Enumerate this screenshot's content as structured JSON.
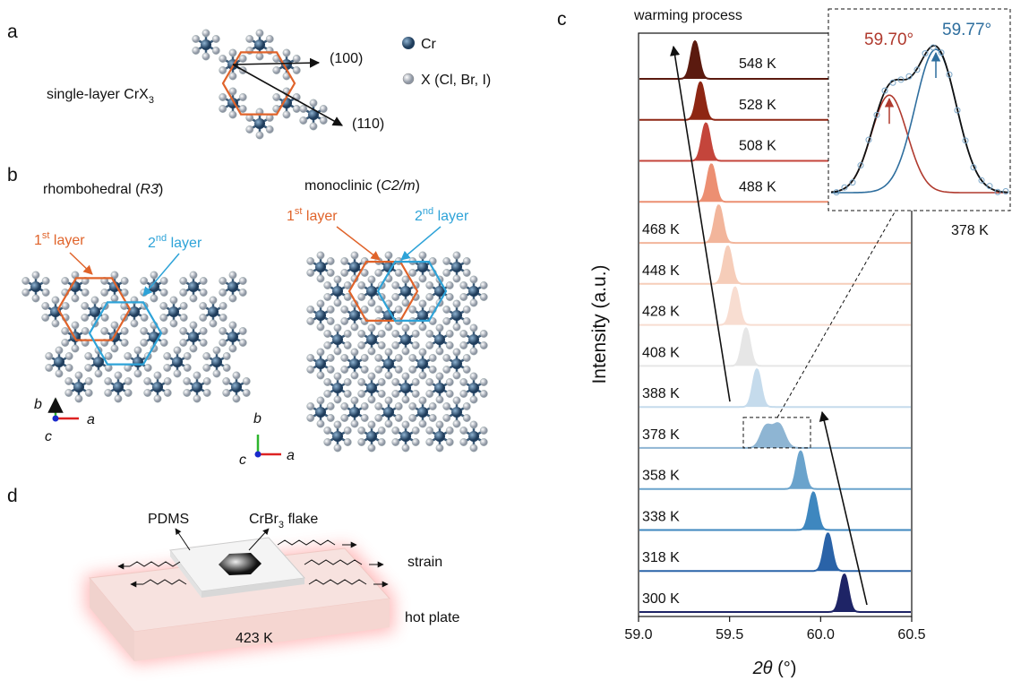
{
  "panel_labels": [
    "a",
    "b",
    "c",
    "d"
  ],
  "panel_a": {
    "label": "single-layer CrX",
    "label_sub": "3",
    "direction_1": "(100)",
    "direction_2": "(110)",
    "legend": [
      "Cr",
      "X (Cl, Br, I)"
    ]
  },
  "panel_b": {
    "rhombohedral": {
      "prefix": "rhombohedral (",
      "symbol": "R3̄",
      "suffix": ")"
    },
    "monoclinic": {
      "prefix": "monoclinic (",
      "symbol": "C2/m",
      "suffix": ")"
    },
    "first_layer": {
      "number": "1",
      "sup": "st",
      "text": " layer"
    },
    "second_layer": {
      "number": "2",
      "sup": "nd",
      "text": " layer"
    },
    "axes": [
      "b",
      "c",
      "a"
    ]
  },
  "panel_d": {
    "pdms": "PDMS",
    "flake": "CrBr",
    "flake_sub": "3",
    "flake_text": " flake",
    "strain": "strain",
    "hot_plate": "hot plate",
    "temperature": "423 K"
  },
  "chart_data": {
    "type": "ridgeline",
    "title": "warming process",
    "x_label_italic": "2θ",
    "x_label_unit": " (°)",
    "y_label": "Intensity (a.u.)",
    "xlim": [
      59,
      60.5
    ],
    "xticks": [
      {
        "value": 59,
        "label": "59.0"
      },
      59.5,
      {
        "value": 60,
        "label": "60.0"
      },
      60.5
    ],
    "series": [
      {
        "name": "548 K",
        "color": "#5b1a0f",
        "peak": 59.31
      },
      {
        "name": "528 K",
        "color": "#8e2613",
        "peak": 59.34
      },
      {
        "name": "508 K",
        "color": "#c4453b",
        "peak": 59.37
      },
      {
        "name": "488 K",
        "color": "#ec8f72",
        "peak": 59.4
      },
      {
        "name": "468 K",
        "color": "#f2b59b",
        "peak": 59.44
      },
      {
        "name": "448 K",
        "color": "#f6cdb9",
        "peak": 59.49
      },
      {
        "name": "428 K",
        "color": "#f8ddd1",
        "peak": 59.53
      },
      {
        "name": "408 K",
        "color": "#e6e6e6",
        "peak": 59.59
      },
      {
        "name": "388 K",
        "color": "#c5dbec",
        "peak": 59.65
      },
      {
        "name": "378 K",
        "color": "#8eb5d3",
        "peak": 59.72
      },
      {
        "name": "358 K",
        "color": "#6aa3cc",
        "peak": 59.89
      },
      {
        "name": "338 K",
        "color": "#3e87bf",
        "peak": 59.96
      },
      {
        "name": "318 K",
        "color": "#2a63a8",
        "peak": 60.04
      },
      {
        "name": "300 K",
        "color": "#1e2466",
        "peak": 60.13
      }
    ],
    "inset": {
      "temperature": "378 K",
      "peaks": [
        {
          "label": "59.70°",
          "value": 59.7,
          "color": "#b03a2e"
        },
        {
          "label": "59.77°",
          "value": 59.77,
          "color": "#2e6e9e"
        }
      ]
    }
  }
}
